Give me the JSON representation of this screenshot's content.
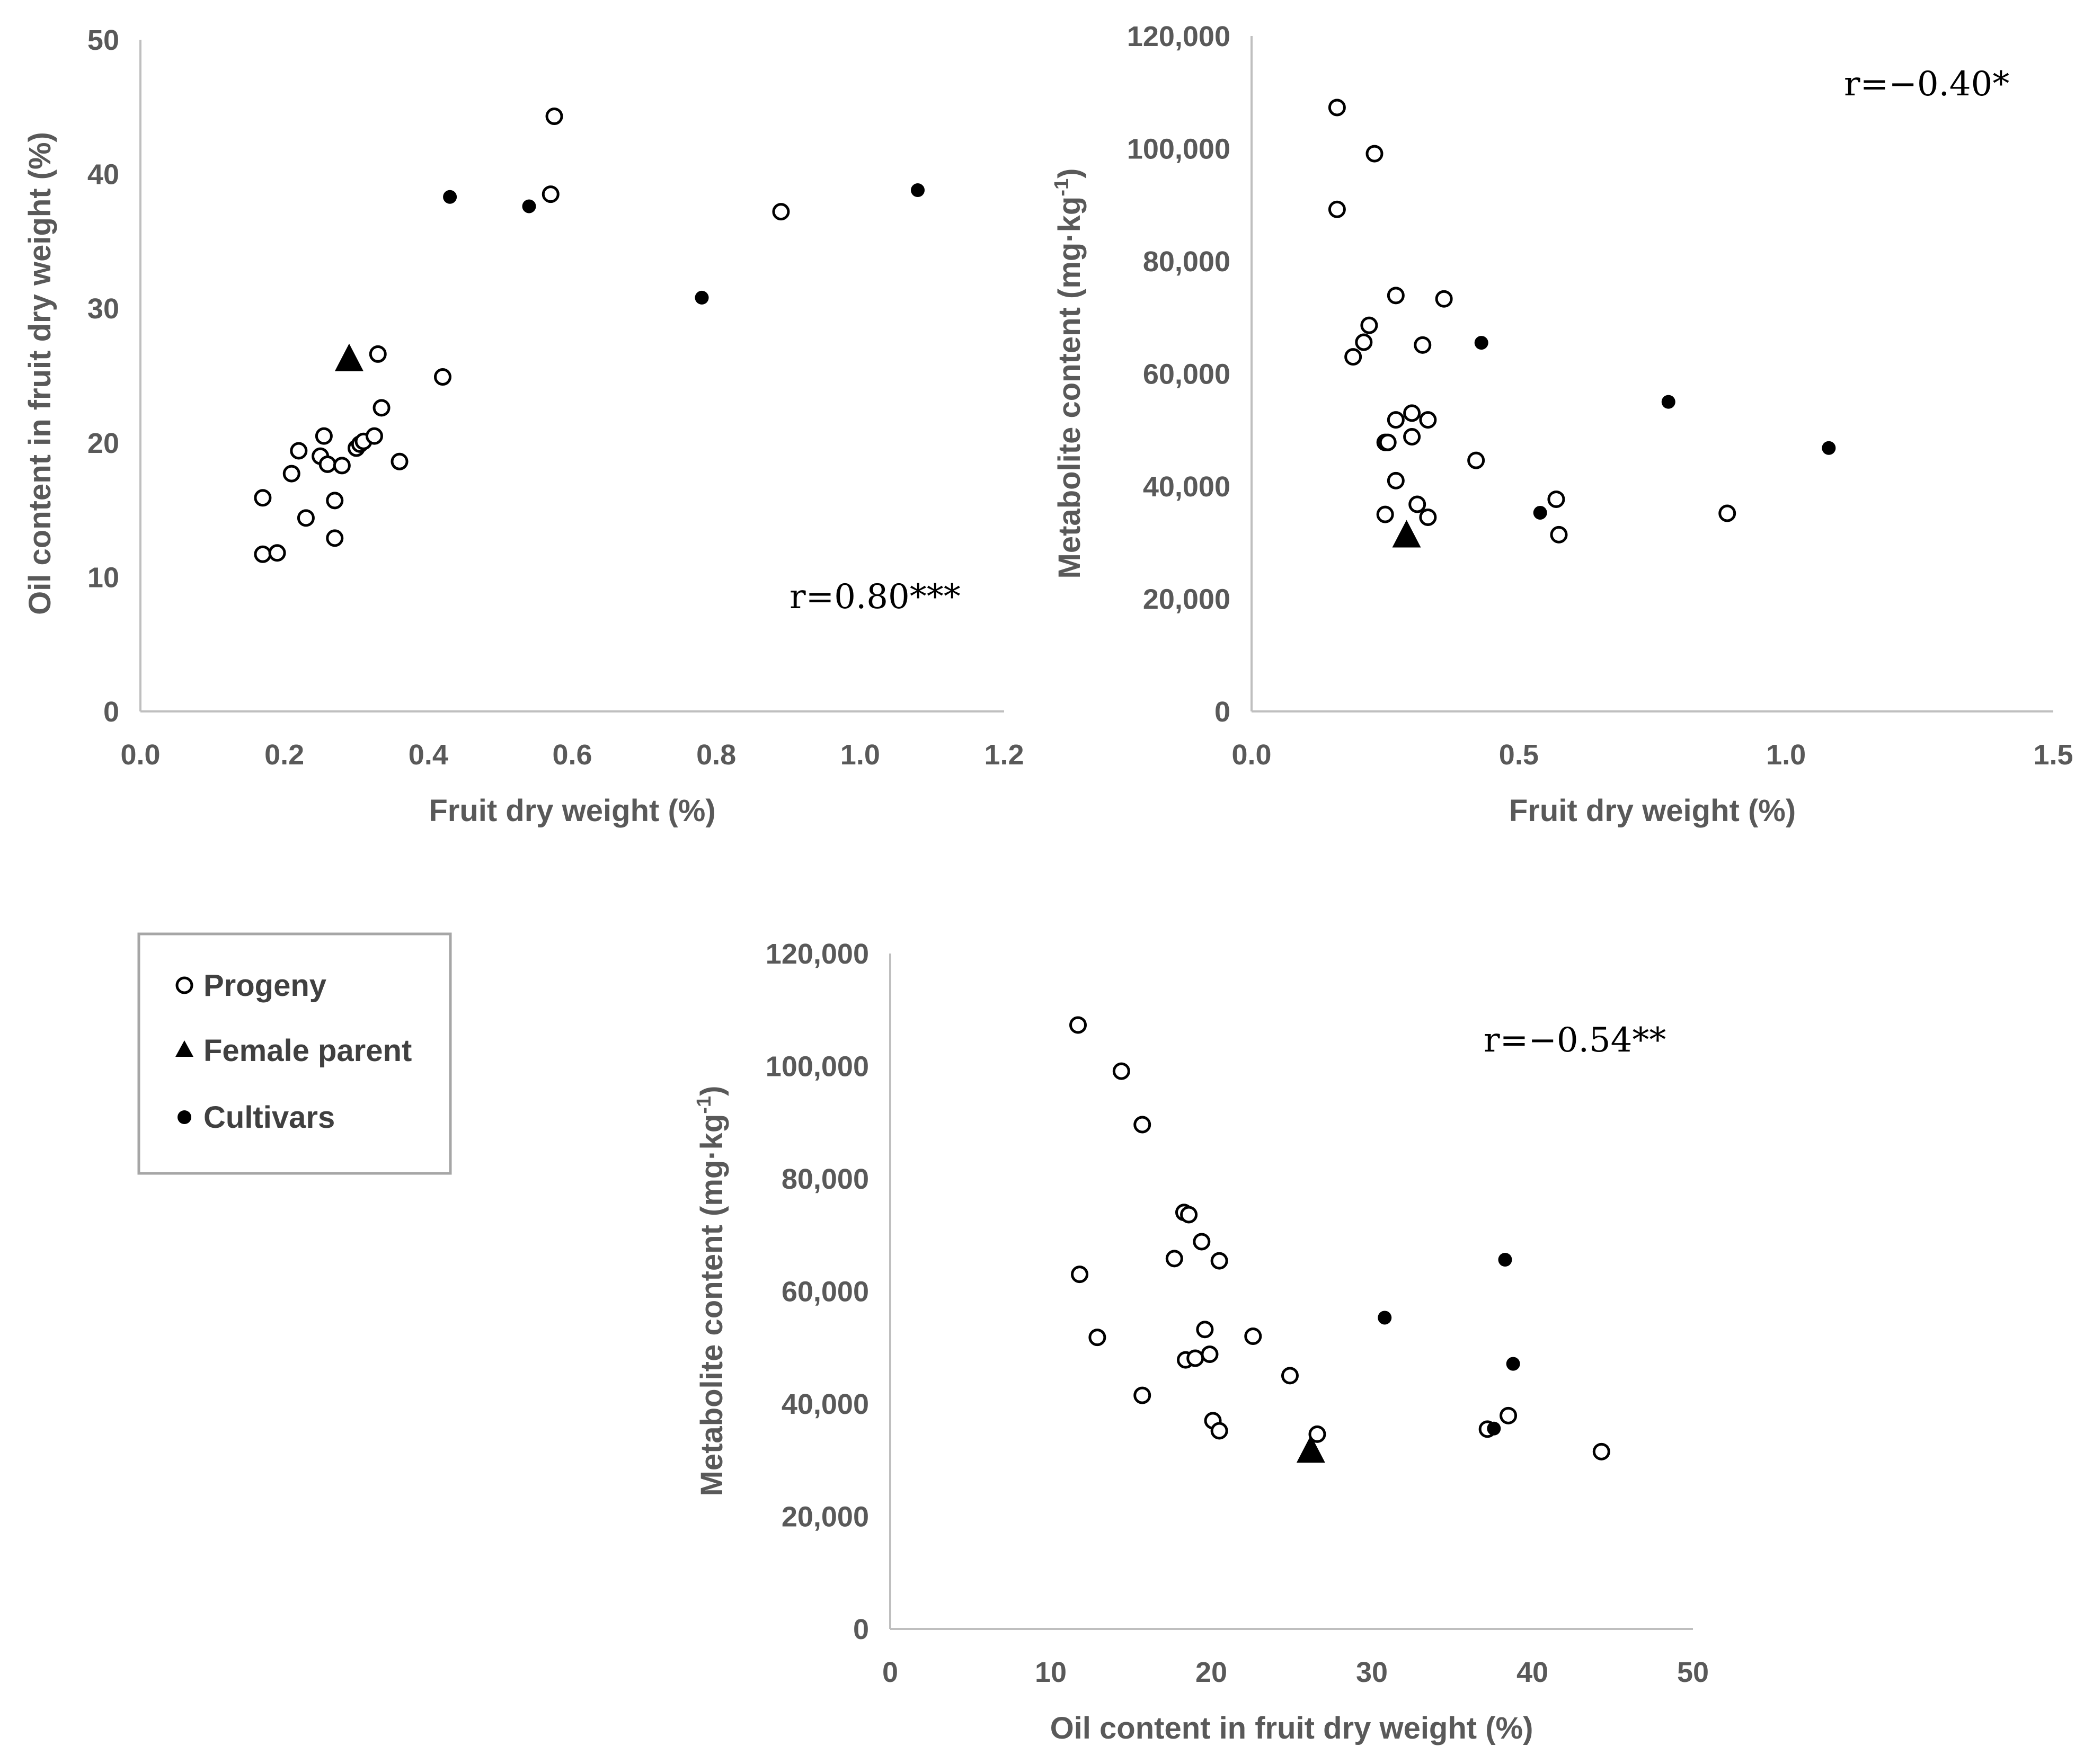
{
  "legend": {
    "items": [
      {
        "label": "Progeny",
        "marker": "open-circle"
      },
      {
        "label": "Female parent",
        "marker": "filled-triangle"
      },
      {
        "label": "Cultivars",
        "marker": "filled-circle"
      }
    ]
  },
  "colors": {
    "axis": "#bfbfbf",
    "text": "#595959",
    "marker": "#000000",
    "background": "#ffffff"
  },
  "chart_data": [
    {
      "id": "a",
      "type": "scatter",
      "xlabel": "Fruit dry weight (%)",
      "ylabel": "Oil content in fruit dry weight (%)",
      "xlim": [
        0,
        1.2
      ],
      "ylim": [
        0,
        50
      ],
      "xticks": [
        0.0,
        0.2,
        0.4,
        0.6,
        0.8,
        1.0,
        1.2
      ],
      "yticks": [
        0,
        10,
        20,
        30,
        40,
        50
      ],
      "xtick_labels": [
        "0.0",
        "0.2",
        "0.4",
        "0.6",
        "0.8",
        "1.0",
        "1.2"
      ],
      "ytick_labels": [
        "0",
        "10",
        "20",
        "30",
        "40",
        "50"
      ],
      "annotation": "r=0.80***",
      "series": [
        {
          "name": "Progeny",
          "marker": "open-circle",
          "points": [
            [
              0.17,
              15.9
            ],
            [
              0.17,
              11.7
            ],
            [
              0.19,
              11.8
            ],
            [
              0.21,
              17.7
            ],
            [
              0.22,
              19.4
            ],
            [
              0.23,
              14.4
            ],
            [
              0.25,
              19.0
            ],
            [
              0.255,
              20.5
            ],
            [
              0.26,
              18.4
            ],
            [
              0.27,
              15.7
            ],
            [
              0.27,
              12.9
            ],
            [
              0.28,
              18.3
            ],
            [
              0.3,
              19.6
            ],
            [
              0.305,
              19.9
            ],
            [
              0.31,
              20.1
            ],
            [
              0.325,
              20.5
            ],
            [
              0.33,
              26.6
            ],
            [
              0.335,
              22.6
            ],
            [
              0.36,
              18.6
            ],
            [
              0.42,
              24.9
            ],
            [
              0.57,
              38.5
            ],
            [
              0.575,
              44.3
            ],
            [
              0.89,
              37.2
            ]
          ]
        },
        {
          "name": "Female parent",
          "marker": "filled-triangle",
          "points": [
            [
              0.29,
              26.2
            ]
          ]
        },
        {
          "name": "Cultivars",
          "marker": "filled-circle",
          "points": [
            [
              0.43,
              38.3
            ],
            [
              0.54,
              37.6
            ],
            [
              0.78,
              30.8
            ],
            [
              1.08,
              38.8
            ]
          ]
        }
      ]
    },
    {
      "id": "b",
      "type": "scatter",
      "xlabel": "Fruit dry weight (%)",
      "ylabel": "Metabolite content (mg·kg",
      "ylabel_superscript": "-1",
      "ylabel_suffix": ")",
      "xlim": [
        0,
        1.5
      ],
      "ylim": [
        0,
        120000
      ],
      "xticks": [
        0.0,
        0.5,
        1.0,
        1.5
      ],
      "yticks": [
        0,
        20000,
        40000,
        60000,
        80000,
        100000,
        120000
      ],
      "xtick_labels": [
        "0.0",
        "0.5",
        "1.0",
        "1.5"
      ],
      "ytick_labels": [
        "0",
        "20,000",
        "40,000",
        "60,000",
        "80,000",
        "100,000",
        "120,000"
      ],
      "annotation": "r=−0.40*",
      "series": [
        {
          "name": "Progeny",
          "marker": "open-circle",
          "points": [
            [
              0.16,
              107300
            ],
            [
              0.16,
              89200
            ],
            [
              0.23,
              99100
            ],
            [
              0.19,
              63000
            ],
            [
              0.21,
              65600
            ],
            [
              0.22,
              68600
            ],
            [
              0.27,
              73900
            ],
            [
              0.36,
              73300
            ],
            [
              0.32,
              65100
            ],
            [
              0.25,
              47800
            ],
            [
              0.255,
              47800
            ],
            [
              0.27,
              51800
            ],
            [
              0.3,
              53000
            ],
            [
              0.3,
              48800
            ],
            [
              0.33,
              51800
            ],
            [
              0.27,
              41000
            ],
            [
              0.25,
              35000
            ],
            [
              0.31,
              36800
            ],
            [
              0.33,
              34500
            ],
            [
              0.42,
              44600
            ],
            [
              0.57,
              37700
            ],
            [
              0.575,
              31400
            ],
            [
              0.89,
              35200
            ]
          ]
        },
        {
          "name": "Female parent",
          "marker": "filled-triangle",
          "points": [
            [
              0.29,
              31200
            ]
          ]
        },
        {
          "name": "Cultivars",
          "marker": "filled-circle",
          "points": [
            [
              0.43,
              65500
            ],
            [
              0.54,
              35300
            ],
            [
              0.78,
              55000
            ],
            [
              1.08,
              46800
            ]
          ]
        }
      ]
    },
    {
      "id": "c",
      "type": "scatter",
      "xlabel": "Oil content in fruit dry weight (%)",
      "ylabel": "Metabolite content (mg·kg",
      "ylabel_superscript": "-1",
      "ylabel_suffix": ")",
      "xlim": [
        0,
        50
      ],
      "ylim": [
        0,
        120000
      ],
      "xticks": [
        0,
        10,
        20,
        30,
        40,
        50
      ],
      "yticks": [
        0,
        20000,
        40000,
        60000,
        80000,
        100000,
        120000
      ],
      "xtick_labels": [
        "0",
        "10",
        "20",
        "30",
        "40",
        "50"
      ],
      "ytick_labels": [
        "0",
        "20,000",
        "40,000",
        "60,000",
        "80,000",
        "100,000",
        "120,000"
      ],
      "annotation": "r=−0.54**",
      "series": [
        {
          "name": "Progeny",
          "marker": "open-circle",
          "points": [
            [
              11.7,
              107300
            ],
            [
              14.4,
              99100
            ],
            [
              15.7,
              89600
            ],
            [
              11.8,
              63000
            ],
            [
              12.9,
              51800
            ],
            [
              18.3,
              74000
            ],
            [
              18.6,
              73600
            ],
            [
              19.4,
              68800
            ],
            [
              17.7,
              65800
            ],
            [
              20.5,
              65400
            ],
            [
              19.6,
              53200
            ],
            [
              22.6,
              52000
            ],
            [
              18.4,
              47800
            ],
            [
              19.0,
              48100
            ],
            [
              19.9,
              48800
            ],
            [
              24.9,
              45000
            ],
            [
              15.7,
              41500
            ],
            [
              20.1,
              37000
            ],
            [
              20.5,
              35200
            ],
            [
              26.6,
              34600
            ],
            [
              37.2,
              35500
            ],
            [
              38.5,
              37900
            ],
            [
              44.3,
              31500
            ]
          ]
        },
        {
          "name": "Female parent",
          "marker": "filled-triangle",
          "points": [
            [
              26.2,
              31600
            ]
          ]
        },
        {
          "name": "Cultivars",
          "marker": "filled-circle",
          "points": [
            [
              30.8,
              55300
            ],
            [
              38.3,
              65600
            ],
            [
              38.8,
              47100
            ],
            [
              37.6,
              35600
            ]
          ]
        }
      ]
    }
  ]
}
